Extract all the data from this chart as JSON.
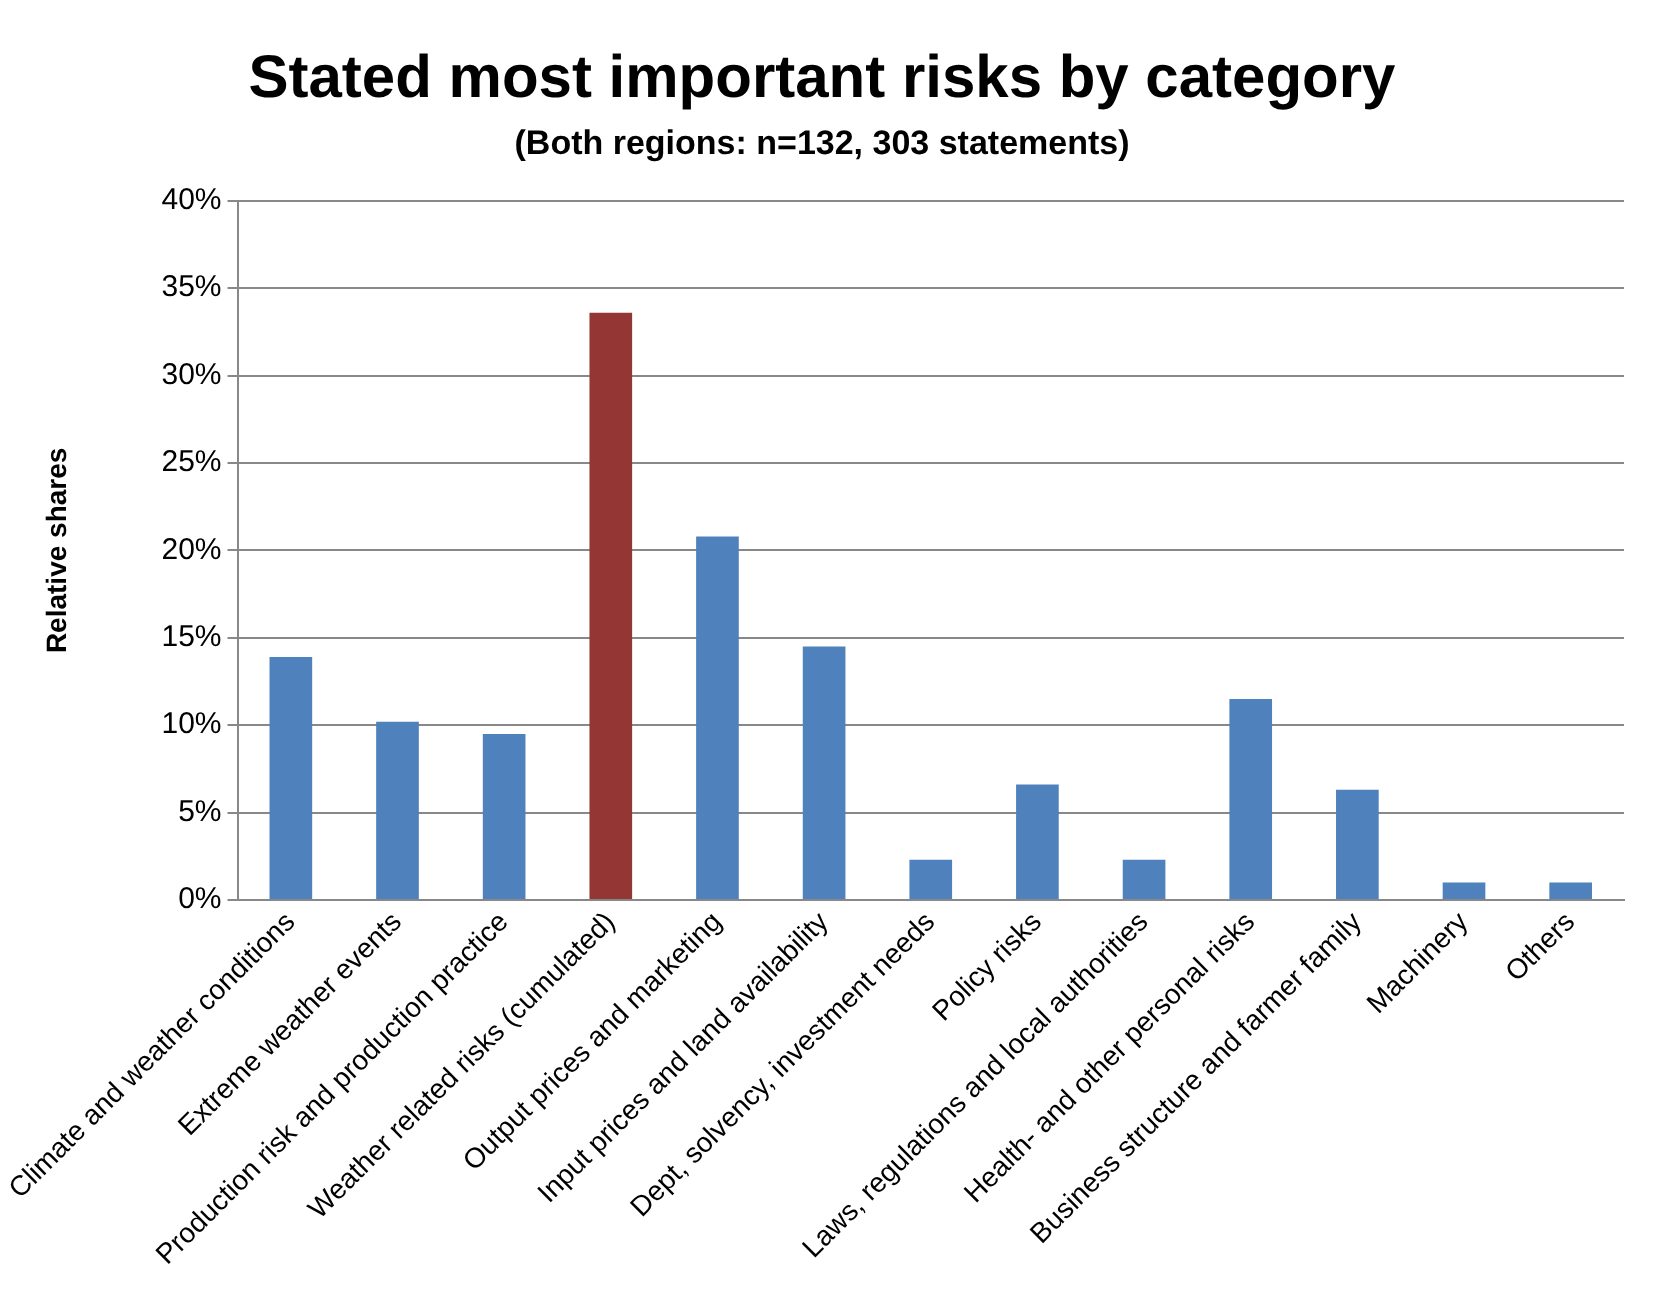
{
  "chart_data": {
    "type": "bar",
    "title": "Stated most important risks by category",
    "subtitle": "(Both regions: n=132, 303 statements)",
    "ylabel": "Relative shares",
    "categories": [
      "Climate and weather conditions",
      "Extreme weather events",
      "Production risk and production practice",
      "Weather related risks (cumulated)",
      "Output prices and marketing",
      "Input prices and land availability",
      "Dept, solvency, investment needs",
      "Policy risks",
      "Laws, regulations and local authorities",
      "Health- and other personal risks",
      "Business structure and farmer family",
      "Machinery",
      "Others"
    ],
    "values": [
      13.9,
      10.2,
      9.5,
      33.6,
      20.8,
      14.5,
      2.3,
      6.6,
      2.3,
      11.5,
      6.3,
      1.0,
      1.0
    ],
    "colors": [
      "#4f81bd",
      "#4f81bd",
      "#4f81bd",
      "#943634",
      "#4f81bd",
      "#4f81bd",
      "#4f81bd",
      "#4f81bd",
      "#4f81bd",
      "#4f81bd",
      "#4f81bd",
      "#4f81bd",
      "#4f81bd"
    ],
    "ylim": [
      0,
      40
    ],
    "yticks": [
      {
        "value": 0,
        "label": "0%"
      },
      {
        "value": 5,
        "label": "5%"
      },
      {
        "value": 10,
        "label": "10%"
      },
      {
        "value": 15,
        "label": "15%"
      },
      {
        "value": 20,
        "label": "20%"
      },
      {
        "value": 25,
        "label": "25%"
      },
      {
        "value": 30,
        "label": "30%"
      },
      {
        "value": 35,
        "label": "35%"
      },
      {
        "value": 40,
        "label": "40%"
      }
    ],
    "grid": "y",
    "legend": false
  }
}
